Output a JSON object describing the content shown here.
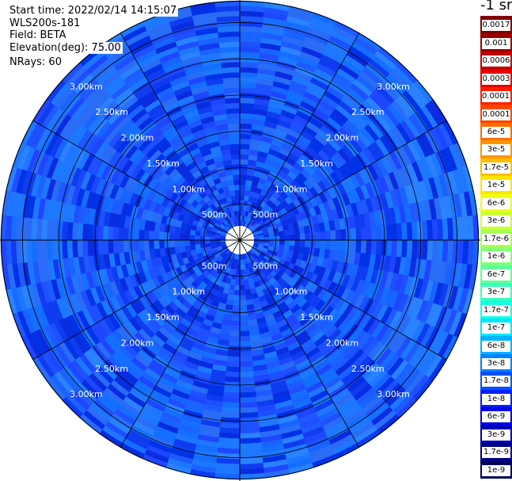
{
  "info": {
    "start_time": "Start time: 2022/02/14 14:15:07",
    "instrument": "WLS200s-181",
    "field": "Field: BETA",
    "elevation": "Elevation(deg): 75.00",
    "nrays": "NRays: 60"
  },
  "colorbar": {
    "unit": "-1 sr",
    "labels": [
      "0.0017",
      "0.001",
      "0.0006",
      "0.0003",
      "0.00017",
      "0.0001",
      "6e-5",
      "3e-5",
      "1.7e-5",
      "1e-5",
      "6e-6",
      "3e-6",
      "1.7e-6",
      "1e-6",
      "6e-7",
      "3e-7",
      "1.7e-7",
      "1e-7",
      "6e-8",
      "3e-8",
      "1.7e-8",
      "1e-8",
      "6e-9",
      "3e-9",
      "1.7e-9",
      "1e-9"
    ],
    "colors": [
      "#7f0000",
      "#9a0000",
      "#bf0000",
      "#e60000",
      "#ff1e00",
      "#ff4600",
      "#ff6e00",
      "#ff9600",
      "#ffbe00",
      "#ffe600",
      "#f0ff10",
      "#ccff33",
      "#a8ff55",
      "#84ff77",
      "#60ff99",
      "#3cffbb",
      "#18ffe0",
      "#00e6ff",
      "#00b4ff",
      "#0082ff",
      "#0050ff",
      "#0020ff",
      "#0000e6",
      "#0000b4",
      "#000082",
      "#00005a"
    ]
  },
  "chart_data": {
    "type": "ppi",
    "field": "BETA",
    "elevation_deg": 75.0,
    "n_rays": 60,
    "range_rings": [
      "500m",
      "1.00km",
      "1.50km",
      "2.00km",
      "2.50km",
      "3.00km"
    ],
    "range_rings_km": [
      0.5,
      1.0,
      1.5,
      2.0,
      2.5,
      3.0
    ],
    "spokes_deg": [
      0,
      30,
      60,
      90,
      120,
      150,
      180,
      210,
      240,
      270,
      300,
      330
    ],
    "dominant_value_range": [
      "1e-8",
      "3e-8"
    ],
    "dominant_colors": [
      "#0020ff",
      "#0050ff",
      "#0064ff"
    ]
  }
}
